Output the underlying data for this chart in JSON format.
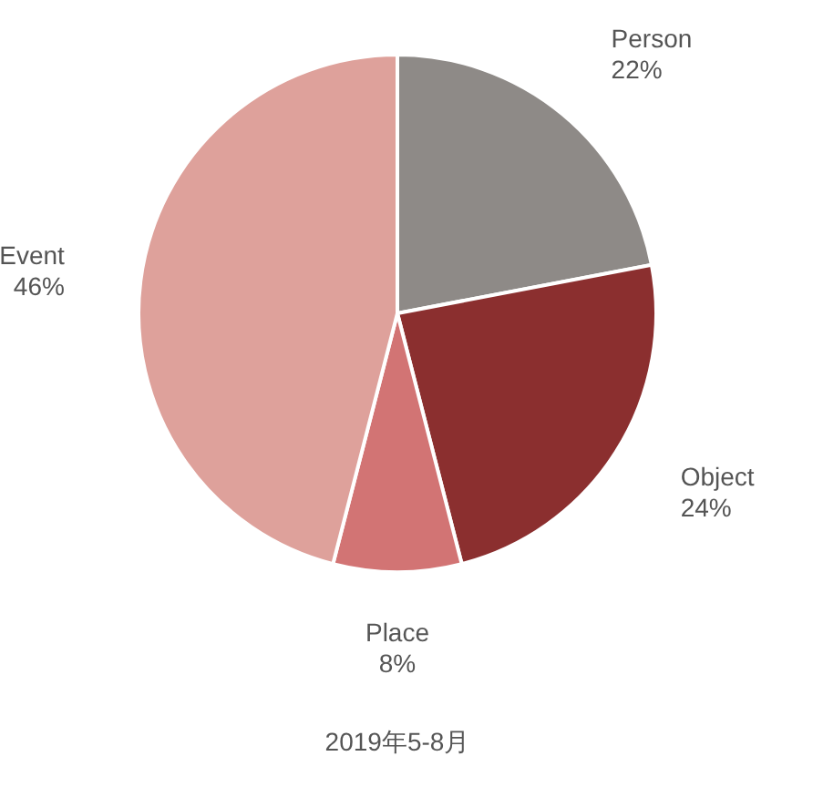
{
  "chart_data": {
    "type": "pie",
    "categories": [
      "Person",
      "Object",
      "Place",
      "Event"
    ],
    "values": [
      22,
      24,
      8,
      46
    ],
    "value_labels": [
      "22%",
      "24%",
      "8%",
      "46%"
    ],
    "colors": [
      "#8e8a87",
      "#8b2f2f",
      "#d27474",
      "#dea19b"
    ],
    "annotations": [
      "2019年5-8月"
    ]
  }
}
